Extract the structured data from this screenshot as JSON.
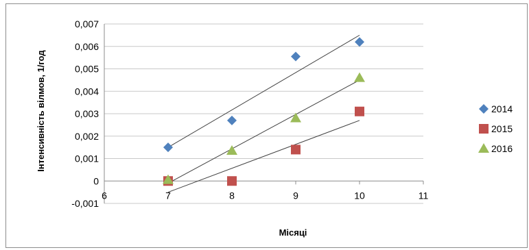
{
  "chart_data": {
    "type": "scatter",
    "xlabel": "Місяці",
    "ylabel": "Інтенсивність вілмов, 1/год",
    "xlim": [
      6,
      11
    ],
    "ylim": [
      -0.001,
      0.007
    ],
    "x_ticks": [
      "6",
      "7",
      "8",
      "9",
      "10",
      "11"
    ],
    "y_ticks": [
      "-0,001",
      "0",
      "0,001",
      "0,002",
      "0,003",
      "0,004",
      "0,005",
      "0,006",
      "0,007"
    ],
    "grid": "horizontal",
    "legend_position": "right",
    "series": [
      {
        "name": "2014",
        "marker": "diamond",
        "color": "#4f81bd",
        "x": [
          7,
          8,
          9,
          10
        ],
        "y": [
          0.0015,
          0.0027,
          0.00555,
          0.0062
        ],
        "trendline": [
          [
            7,
            0.0015
          ],
          [
            10,
            0.0065
          ]
        ]
      },
      {
        "name": "2015",
        "marker": "square",
        "color": "#c0504d",
        "x": [
          7,
          8,
          9,
          10
        ],
        "y": [
          0.0,
          0.0,
          0.0014,
          0.0031
        ],
        "trendline": [
          [
            7,
            -0.0005
          ],
          [
            10,
            0.0027
          ]
        ]
      },
      {
        "name": "2016",
        "marker": "triangle",
        "color": "#9bbb59",
        "x": [
          7,
          8,
          9,
          10
        ],
        "y": [
          5e-05,
          0.00135,
          0.0028,
          0.0046
        ],
        "trendline": [
          [
            7,
            -0.0001
          ],
          [
            10,
            0.0045
          ]
        ]
      }
    ]
  }
}
